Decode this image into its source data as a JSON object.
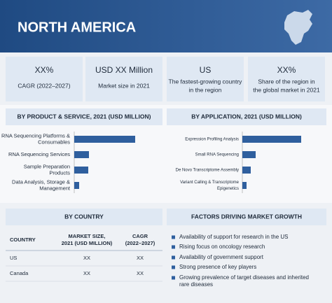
{
  "header": {
    "title": "NORTH AMERICA"
  },
  "stats": [
    {
      "value": "XX%",
      "label": [
        "CAGR (2022–2027)"
      ]
    },
    {
      "value": "USD XX Million",
      "label": [
        "Market size in 2021"
      ]
    },
    {
      "value": "US",
      "label": [
        "The fastest-growing country",
        "in the region"
      ]
    },
    {
      "value": "XX%",
      "label": [
        "Share of the region in",
        "the global market in 2021"
      ]
    }
  ],
  "product_chart": {
    "type": "bar",
    "title": "BY PRODUCT & SERVICE, 2021 (USD MILLION)",
    "categories": [
      [
        "RNA Sequencing Platforms &",
        "Consumables"
      ],
      [
        "RNA Sequencing Services"
      ],
      [
        "Sample Preparation",
        "Products"
      ],
      [
        "Data Analysis, Storage &",
        "Management"
      ]
    ],
    "values": [
      87,
      21,
      20,
      7
    ],
    "color": "#2f5f9e"
  },
  "application_chart": {
    "type": "bar",
    "title": "BY APPLICATION, 2021 (USD MILLION)",
    "categories": [
      [
        "Expression Profiling Analysis"
      ],
      [
        "Small RNA Sequencing"
      ],
      [
        "De Novo Transcriptome Assembly"
      ],
      [
        "Variant Calling & Transcriptome",
        "Epigenetics"
      ]
    ],
    "values": [
      84,
      19,
      12,
      6
    ],
    "color": "#2f5f9e"
  },
  "country_table": {
    "title": "BY COUNTRY",
    "columns": [
      [
        "COUNTRY"
      ],
      [
        "MARKET SIZE,",
        "2021 (USD MILLION)"
      ],
      [
        "CAGR",
        "(2022–2027)"
      ]
    ],
    "rows": [
      [
        "US",
        "XX",
        "XX"
      ],
      [
        "Canada",
        "XX",
        "XX"
      ]
    ]
  },
  "factors": {
    "title": "FACTORS DRIVING MARKET GROWTH",
    "items": [
      [
        "Availability of support for research in the US"
      ],
      [
        "Rising focus on oncology research"
      ],
      [
        "Availability of government support"
      ],
      [
        "Strong presence of key players"
      ],
      [
        "Growing prevalence of target diseases and inherited",
        "rare diseases"
      ]
    ]
  }
}
